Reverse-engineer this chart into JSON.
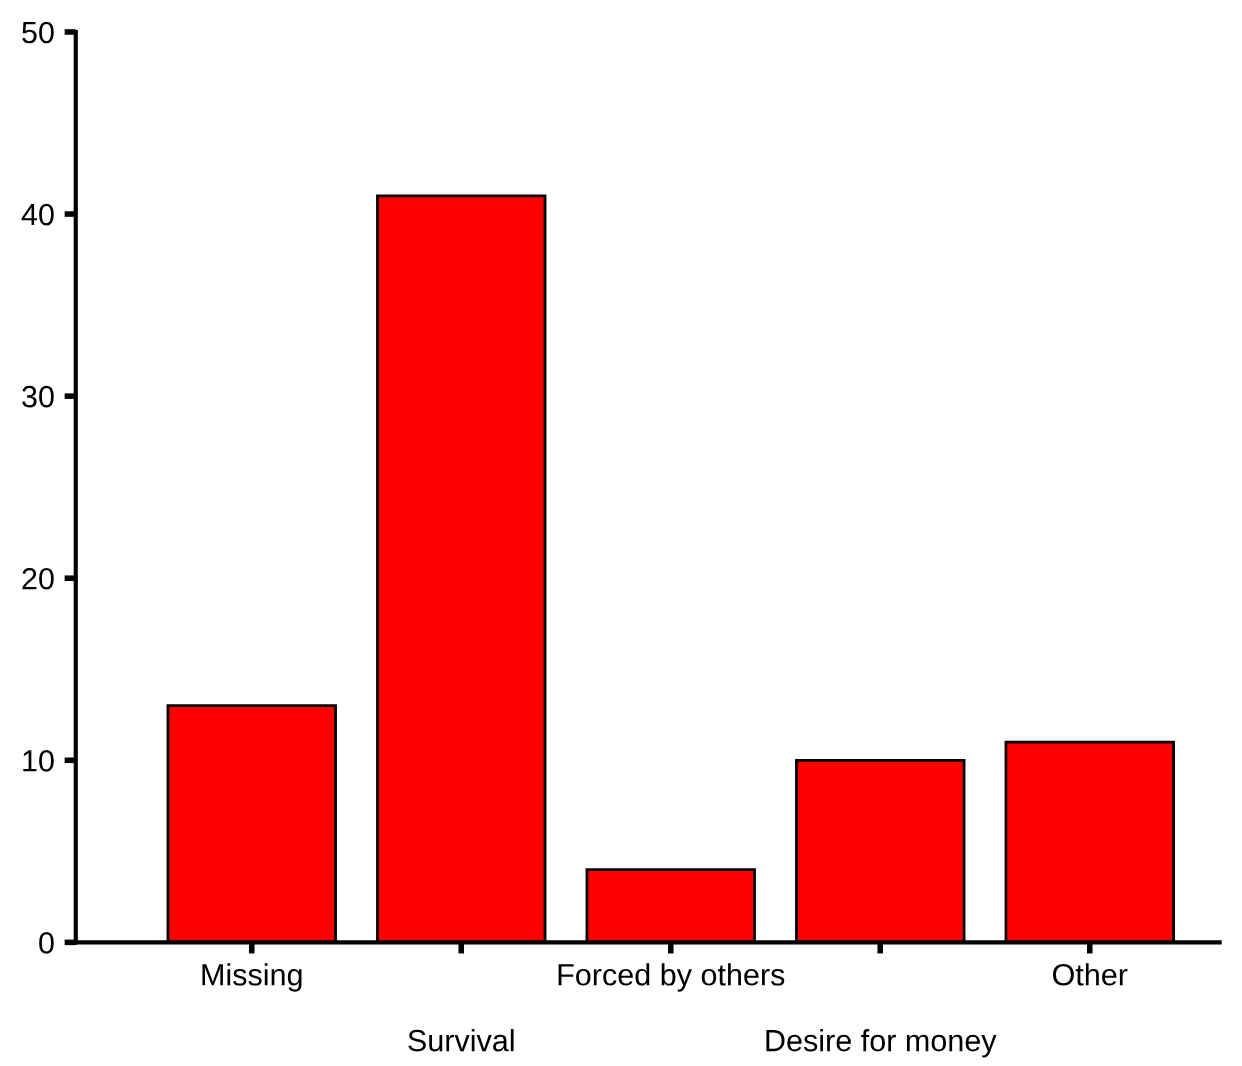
{
  "chart_data": {
    "type": "bar",
    "categories": [
      "Missing",
      "Survival",
      "Forced by others",
      "Desire for money",
      "Other"
    ],
    "values": [
      13,
      41,
      4,
      10,
      11
    ],
    "color": "#ff0000",
    "ylim": [
      0,
      50
    ],
    "yticks": [
      0,
      10,
      20,
      30,
      40,
      50
    ],
    "grid": false,
    "legend": false
  }
}
